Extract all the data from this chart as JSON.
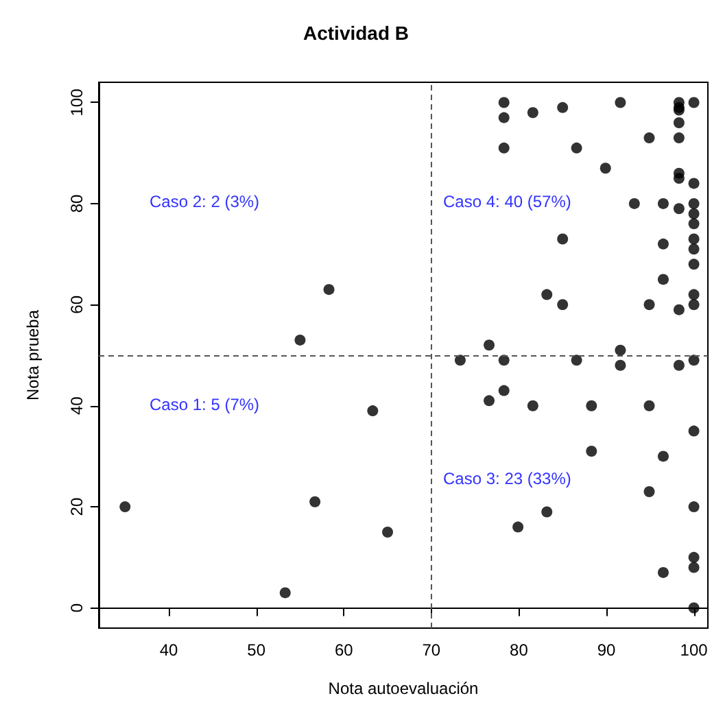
{
  "chart_data": {
    "type": "scatter",
    "title": "Actividad B",
    "xlabel": "Nota autoevaluación",
    "ylabel": "Nota prueba",
    "x": [
      78.3,
      78.3,
      78.3,
      81.6,
      85,
      86.6,
      91.6,
      89.9,
      94.9,
      98.3,
      98.3,
      98.3,
      98.3,
      98.3,
      100,
      98.3,
      98.3,
      100,
      93.2,
      96.5,
      98.3,
      100,
      100,
      100,
      85,
      96.5,
      100,
      100,
      100,
      96.5,
      83.2,
      85,
      94.9,
      98.3,
      100,
      100,
      76.6,
      91.6,
      73.3,
      78.3,
      86.6,
      91.6,
      98.3,
      100,
      76.6,
      78.3,
      81.6,
      88.3,
      94.9,
      100,
      88.3,
      96.5,
      94.9,
      100,
      83.2,
      79.9,
      100,
      100,
      96.5,
      100,
      58.3,
      55,
      63.3,
      35,
      56.7,
      65,
      53.3
    ],
    "values": [
      100,
      97,
      91,
      98,
      99,
      91,
      100,
      87,
      93,
      100,
      99,
      98.5,
      96,
      93,
      100,
      86,
      85,
      84,
      80,
      80,
      79,
      80,
      78,
      76,
      73,
      72,
      73,
      71,
      68,
      65,
      62,
      60,
      60,
      59,
      62,
      60,
      52,
      51,
      49,
      49,
      49,
      48,
      48,
      49,
      41,
      43,
      40,
      40,
      40,
      35,
      31,
      30,
      23,
      20,
      19,
      16,
      10,
      8,
      7,
      0,
      63,
      53,
      39,
      20,
      21,
      15,
      3
    ],
    "color": "#000000",
    "marker": "circle",
    "xlim": [
      32,
      101.6
    ],
    "ylim": [
      -4,
      104
    ],
    "xticks": [
      40,
      50,
      60,
      70,
      80,
      90,
      100
    ],
    "yticks": [
      0,
      20,
      40,
      60,
      80,
      100
    ],
    "grid": false,
    "ref_lines": [
      {
        "axis": "x",
        "value": 70,
        "line_style": "dashed"
      },
      {
        "axis": "y",
        "value": 50,
        "line_style": "dashed"
      }
    ],
    "annotations": [
      "Caso 2: 2 (3%)",
      "Caso 4: 40 (57%)",
      "Caso 1: 5 (7%)",
      "Caso 3: 23 (33%)"
    ]
  }
}
